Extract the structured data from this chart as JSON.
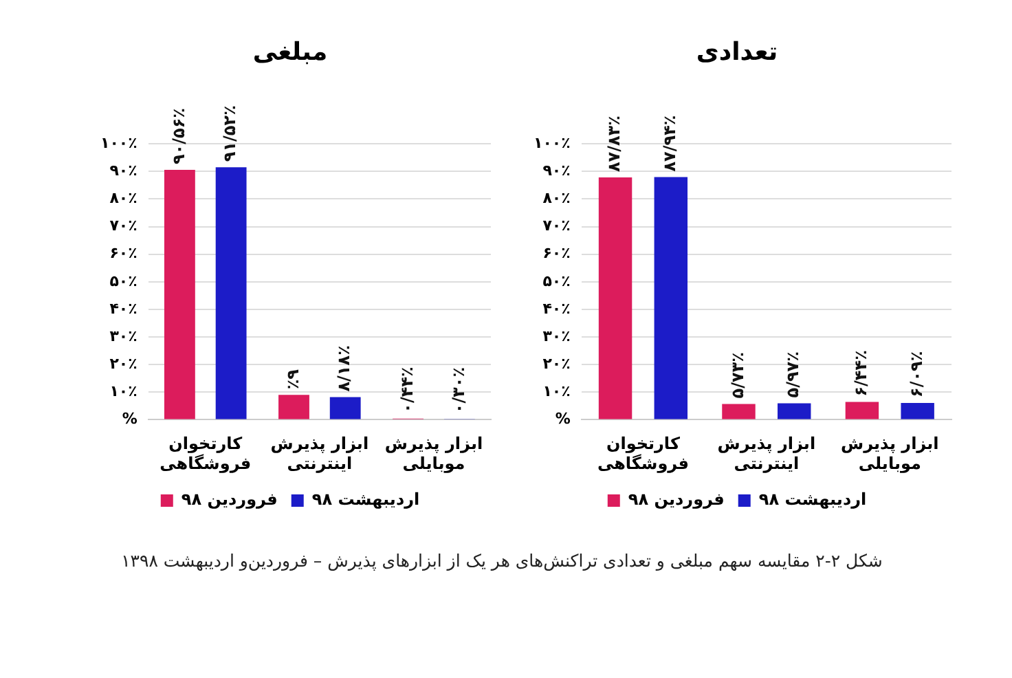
{
  "chart_data": [
    {
      "type": "bar",
      "title": "مبلغی",
      "categories": [
        "کارتخوان فروشگاهی",
        "ابزار پذیرش اینترنتی",
        "ابزار پذیرش موبایلی"
      ],
      "series": [
        {
          "name": "فروردین ۹۸",
          "color": "#dc1c5c",
          "values": [
            90.56,
            9,
            0.44
          ],
          "value_labels": [
            "۹۰/۵۶٪",
            "٪۹",
            "۰/۴۴٪"
          ]
        },
        {
          "name": "اردیبهشت ۹۸",
          "color": "#1c1cc8",
          "values": [
            91.52,
            8.18,
            0.3
          ],
          "value_labels": [
            "۹۱/۵۲٪",
            "۸/۱۸٪",
            "۰/۳۰٪"
          ]
        }
      ],
      "ylim": [
        0,
        100
      ],
      "yticks": [
        {
          "value": 0,
          "label": "%"
        },
        {
          "value": 10,
          "label": "۱۰٪"
        },
        {
          "value": 20,
          "label": "۲۰٪"
        },
        {
          "value": 30,
          "label": "۳۰٪"
        },
        {
          "value": 40,
          "label": "۴۰٪"
        },
        {
          "value": 50,
          "label": "۵۰٪"
        },
        {
          "value": 60,
          "label": "۶۰٪"
        },
        {
          "value": 70,
          "label": "۷۰٪"
        },
        {
          "value": 80,
          "label": "۸۰٪"
        },
        {
          "value": 90,
          "label": "۹۰٪"
        },
        {
          "value": 100,
          "label": "۱۰۰٪"
        }
      ],
      "grid": "y",
      "legend": "bottom",
      "annotations": [
        "شکل ۲-۲ مقایسه سهم مبلغی و تعدادی تراکنش‌های هر یک از ابزارهای پذیرش – فروردین‌و اردیبهشت ۱۳۹۸"
      ]
    },
    {
      "type": "bar",
      "title": "تعدادی",
      "categories": [
        "کارتخوان فروشگاهی",
        "ابزار پذیرش اینترنتی",
        "ابزار پذیرش موبایلی"
      ],
      "series": [
        {
          "name": "فروردین ۹۸",
          "color": "#dc1c5c",
          "values": [
            87.83,
            5.73,
            6.44
          ],
          "value_labels": [
            "۸۷/۸۳٪",
            "۵/۷۳٪",
            "۶/۴۴٪"
          ]
        },
        {
          "name": "اردیبهشت ۹۸",
          "color": "#1c1cc8",
          "values": [
            87.94,
            5.97,
            6.09
          ],
          "value_labels": [
            "۸۷/۹۴٪",
            "۵/۹۷٪",
            "۶/۰۹٪"
          ]
        }
      ],
      "ylim": [
        0,
        100
      ],
      "yticks": [
        {
          "value": 0,
          "label": "%"
        },
        {
          "value": 10,
          "label": "۱۰٪"
        },
        {
          "value": 20,
          "label": "۲۰٪"
        },
        {
          "value": 30,
          "label": "۳۰٪"
        },
        {
          "value": 40,
          "label": "۴۰٪"
        },
        {
          "value": 50,
          "label": "۵۰٪"
        },
        {
          "value": 60,
          "label": "۶۰٪"
        },
        {
          "value": 70,
          "label": "۷۰٪"
        },
        {
          "value": 80,
          "label": "۸۰٪"
        },
        {
          "value": 90,
          "label": "۹۰٪"
        },
        {
          "value": 100,
          "label": "۱۰۰٪"
        }
      ],
      "grid": "y",
      "legend": "bottom"
    }
  ]
}
